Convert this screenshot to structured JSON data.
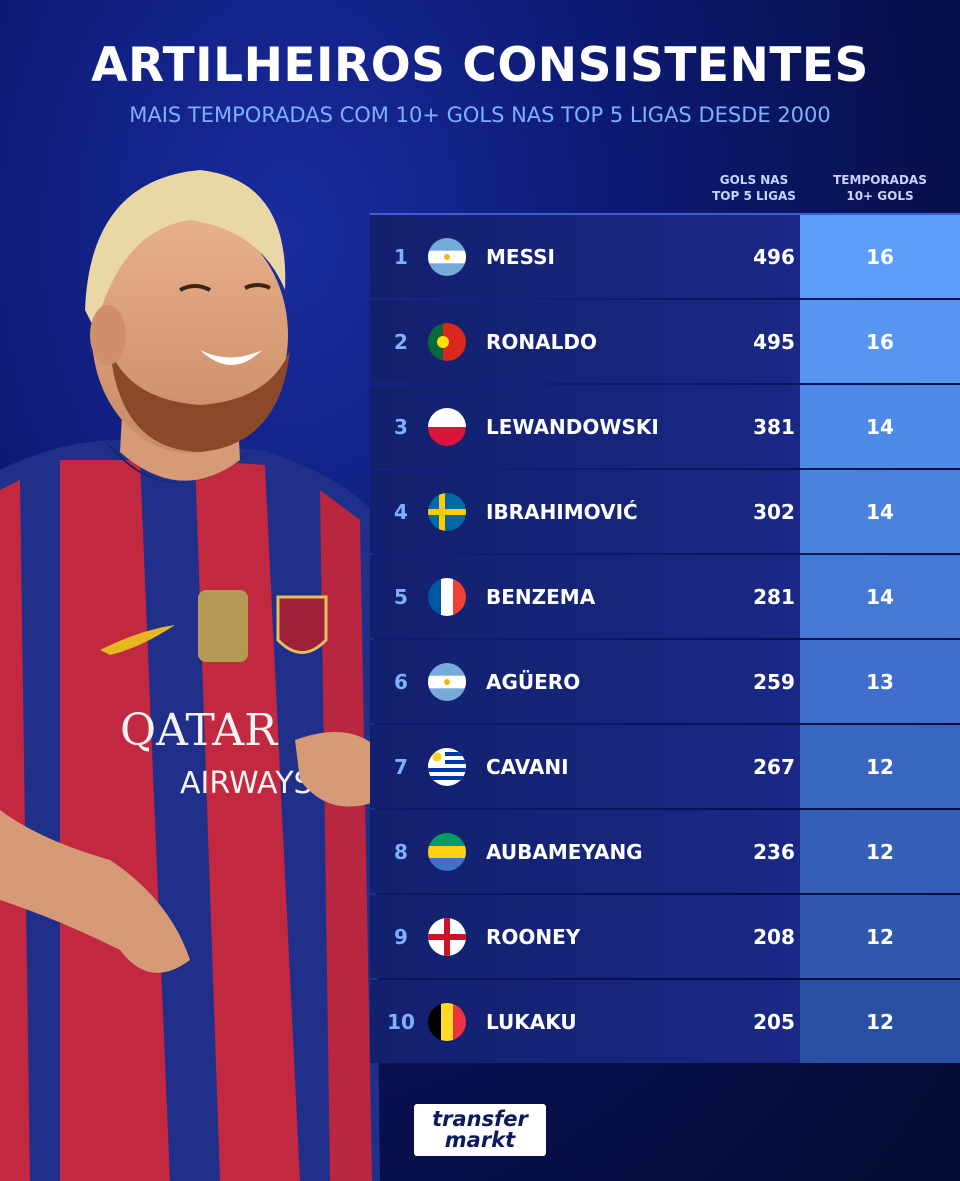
{
  "header": {
    "title": "ARTILHEIROS CONSISTENTES",
    "subtitle": "MAIS TEMPORADAS COM 10+ GOLS NAS TOP 5 LIGAS DESDE 2000"
  },
  "columns": {
    "goals_line1": "GOLS NAS",
    "goals_line2": "TOP 5 LIGAS",
    "seasons_line1": "TEMPORADAS",
    "seasons_line2": "10+ GOLS"
  },
  "rows": [
    {
      "rank": "1",
      "flag": "argentina-flag-icon",
      "name": "MESSI",
      "goals": "496",
      "seasons": "16"
    },
    {
      "rank": "2",
      "flag": "portugal-flag-icon",
      "name": "RONALDO",
      "goals": "495",
      "seasons": "16"
    },
    {
      "rank": "3",
      "flag": "poland-flag-icon",
      "name": "LEWANDOWSKI",
      "goals": "381",
      "seasons": "14"
    },
    {
      "rank": "4",
      "flag": "sweden-flag-icon",
      "name": "IBRAHIMOVIĆ",
      "goals": "302",
      "seasons": "14"
    },
    {
      "rank": "5",
      "flag": "france-flag-icon",
      "name": "BENZEMA",
      "goals": "281",
      "seasons": "14"
    },
    {
      "rank": "6",
      "flag": "argentina-flag-icon",
      "name": "AGÜERO",
      "goals": "259",
      "seasons": "13"
    },
    {
      "rank": "7",
      "flag": "uruguay-flag-icon",
      "name": "CAVANI",
      "goals": "267",
      "seasons": "12"
    },
    {
      "rank": "8",
      "flag": "gabon-flag-icon",
      "name": "AUBAMEYANG",
      "goals": "236",
      "seasons": "12"
    },
    {
      "rank": "9",
      "flag": "england-flag-icon",
      "name": "ROONEY",
      "goals": "208",
      "seasons": "12"
    },
    {
      "rank": "10",
      "flag": "belgium-flag-icon",
      "name": "LUKAKU",
      "goals": "205",
      "seasons": "12"
    }
  ],
  "season_colors": [
    "#5b9df7",
    "#5696f1",
    "#4f8ae6",
    "#4a82de",
    "#4579d4",
    "#3f6fca",
    "#3966c0",
    "#3460b8",
    "#2f58ae",
    "#2a50a4"
  ],
  "photo": {
    "jersey_sponsor_line1": "QATAR",
    "jersey_sponsor_line2": "AIRWAYS"
  },
  "logo": {
    "line1": "transfer",
    "line2": "markt"
  }
}
